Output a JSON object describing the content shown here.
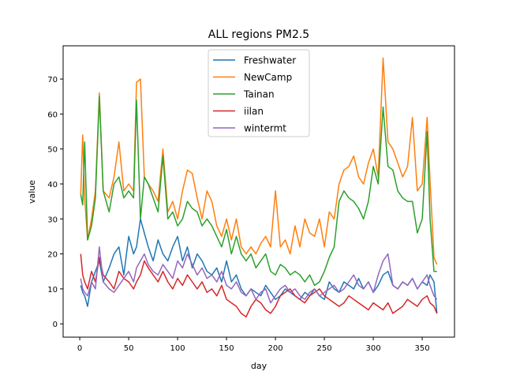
{
  "chart_data": {
    "type": "line",
    "title": "ALL regions PM2.5",
    "xlabel": "day",
    "ylabel": "value",
    "xlim": [
      -17,
      383
    ],
    "ylim": [
      -3.8,
      79.5
    ],
    "x_ticks": [
      0,
      50,
      100,
      150,
      200,
      250,
      300,
      350
    ],
    "y_ticks": [
      0,
      10,
      20,
      30,
      40,
      50,
      60,
      70
    ],
    "grid": false,
    "legend_position": "top-center",
    "keypoint_days": [
      1,
      3,
      5,
      8,
      12,
      16,
      20,
      24,
      30,
      35,
      40,
      45,
      50,
      55,
      58,
      62,
      66,
      70,
      75,
      80,
      85,
      90,
      95,
      100,
      105,
      110,
      115,
      120,
      125,
      130,
      135,
      140,
      145,
      150,
      155,
      160,
      165,
      170,
      175,
      180,
      185,
      190,
      195,
      200,
      205,
      210,
      215,
      220,
      225,
      230,
      235,
      240,
      245,
      250,
      255,
      260,
      265,
      270,
      275,
      280,
      285,
      290,
      295,
      300,
      305,
      310,
      315,
      320,
      325,
      330,
      335,
      340,
      345,
      350,
      355,
      358,
      362,
      365
    ],
    "series": [
      {
        "name": "Freshwater",
        "color": "#1f77b4",
        "values": [
          11,
          9,
          8,
          5,
          12,
          15,
          18,
          12,
          16,
          20,
          22,
          14,
          25,
          20,
          22,
          30,
          26,
          22,
          18,
          24,
          20,
          18,
          22,
          25,
          18,
          22,
          16,
          20,
          18,
          15,
          14,
          16,
          12,
          18,
          12,
          14,
          10,
          8,
          10,
          9,
          8,
          11,
          9,
          7,
          8,
          10,
          9,
          8,
          7,
          9,
          8,
          10,
          8,
          7,
          12,
          10,
          9,
          12,
          11,
          10,
          13,
          10,
          12,
          9,
          11,
          14,
          15,
          11,
          10,
          12,
          11,
          13,
          10,
          12,
          11,
          14,
          12,
          3
        ]
      },
      {
        "name": "NewCamp",
        "color": "#ff7f0e",
        "values": [
          37,
          54,
          36,
          24,
          30,
          38,
          66,
          38,
          36,
          42,
          52,
          38,
          40,
          38,
          69,
          70,
          42,
          40,
          38,
          35,
          50,
          32,
          35,
          30,
          38,
          44,
          43,
          36,
          30,
          38,
          35,
          28,
          25,
          30,
          24,
          30,
          22,
          20,
          22,
          20,
          23,
          25,
          22,
          38,
          22,
          24,
          20,
          28,
          22,
          30,
          26,
          25,
          30,
          22,
          32,
          30,
          40,
          44,
          45,
          48,
          42,
          40,
          46,
          50,
          42,
          76,
          52,
          50,
          46,
          42,
          45,
          59,
          38,
          40,
          59,
          41,
          19,
          17
        ]
      },
      {
        "name": "Tainan",
        "color": "#2ca02c",
        "values": [
          37,
          34,
          52,
          24,
          28,
          36,
          65,
          38,
          32,
          40,
          42,
          36,
          38,
          36,
          64,
          30,
          42,
          40,
          36,
          32,
          48,
          30,
          32,
          28,
          30,
          35,
          33,
          32,
          28,
          30,
          28,
          25,
          22,
          27,
          20,
          25,
          20,
          18,
          20,
          16,
          18,
          20,
          15,
          14,
          17,
          16,
          14,
          15,
          14,
          12,
          14,
          11,
          12,
          15,
          19,
          22,
          35,
          38,
          36,
          35,
          33,
          30,
          35,
          45,
          40,
          62,
          45,
          44,
          38,
          36,
          35,
          35,
          26,
          30,
          55,
          30,
          15,
          15
        ]
      },
      {
        "name": "iilan",
        "color": "#d62728",
        "values": [
          20,
          14,
          12,
          10,
          15,
          12,
          19,
          14,
          12,
          10,
          15,
          13,
          12,
          10,
          12,
          14,
          18,
          16,
          14,
          12,
          15,
          12,
          10,
          13,
          11,
          14,
          12,
          10,
          12,
          9,
          10,
          8,
          11,
          7,
          6,
          5,
          3,
          2,
          5,
          7,
          6,
          4,
          3,
          5,
          8,
          9,
          10,
          8,
          7,
          6,
          8,
          9,
          10,
          8,
          7,
          6,
          5,
          6,
          8,
          7,
          6,
          5,
          4,
          6,
          5,
          4,
          6,
          3,
          4,
          5,
          7,
          6,
          5,
          7,
          8,
          6,
          5,
          3
        ]
      },
      {
        "name": "wintermt",
        "color": "#9467bd",
        "values": [
          13,
          10,
          9,
          8,
          12,
          10,
          22,
          12,
          10,
          9,
          11,
          13,
          15,
          12,
          16,
          18,
          20,
          17,
          15,
          14,
          17,
          15,
          13,
          18,
          16,
          20,
          17,
          14,
          16,
          13,
          14,
          12,
          15,
          11,
          10,
          12,
          9,
          8,
          10,
          7,
          9,
          10,
          6,
          8,
          10,
          11,
          9,
          10,
          8,
          7,
          9,
          10,
          8,
          9,
          10,
          11,
          9,
          10,
          12,
          14,
          11,
          10,
          12,
          9,
          14,
          18,
          20,
          11,
          10,
          12,
          11,
          13,
          10,
          12,
          14,
          11,
          8,
          7
        ]
      }
    ]
  }
}
